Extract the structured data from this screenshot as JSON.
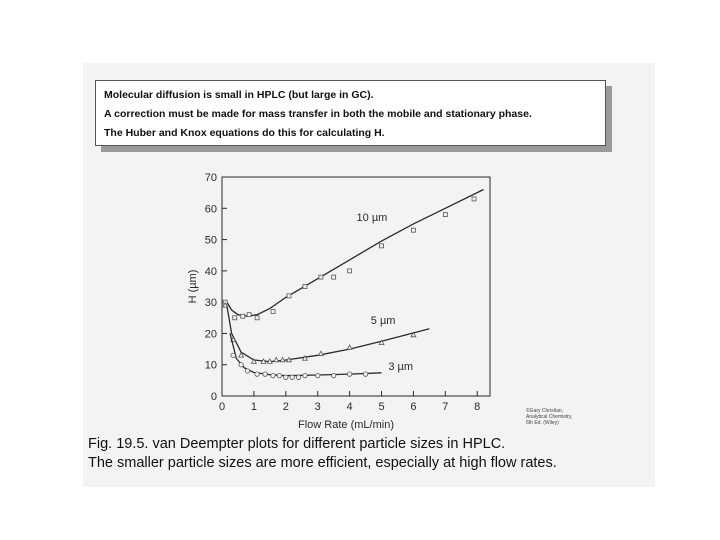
{
  "note": {
    "lines": [
      "Molecular diffusion is small in HPLC (but large in GC).",
      "A correction must be made for mass transfer in both the mobile and stationary phase.",
      "The Huber and Knox equations do this for calculating H."
    ]
  },
  "caption": {
    "line1": "Fig. 19.5. van Deempter plots for different particle sizes in HPLC.",
    "line2": "The smaller particle sizes are more efficient, especially at high flow rates."
  },
  "credit": {
    "line1": "©Gary Christian,",
    "line2": "Analytical Chemistry,",
    "line3": "6th Ed. (Wiley)"
  },
  "chart_data": {
    "type": "line",
    "title": "",
    "xlabel": "Flow Rate (mL/min)",
    "ylabel": "H (µm)",
    "xlim": [
      0,
      8.4
    ],
    "ylim": [
      0,
      70
    ],
    "xticks": [
      0,
      1,
      2,
      3,
      4,
      5,
      6,
      7,
      8
    ],
    "yticks": [
      0,
      10,
      20,
      30,
      40,
      50,
      60,
      70
    ],
    "grid": false,
    "legend": "none",
    "series": [
      {
        "name": "10 µm",
        "marker": "square",
        "points": [
          [
            0.1,
            30
          ],
          [
            0.4,
            25
          ],
          [
            0.65,
            25.5
          ],
          [
            0.85,
            26
          ],
          [
            1.1,
            25
          ],
          [
            1.6,
            27
          ],
          [
            2.1,
            32
          ],
          [
            2.6,
            35
          ],
          [
            3.1,
            38
          ],
          [
            3.5,
            38
          ],
          [
            4.0,
            40
          ],
          [
            5.0,
            48
          ],
          [
            6.0,
            53
          ],
          [
            7.0,
            58
          ],
          [
            7.9,
            63
          ]
        ],
        "curve": [
          [
            0.15,
            30
          ],
          [
            0.3,
            27.5
          ],
          [
            0.5,
            26
          ],
          [
            0.8,
            25.5
          ],
          [
            1.1,
            26
          ],
          [
            1.5,
            28
          ],
          [
            2.0,
            31.5
          ],
          [
            3.0,
            37.5
          ],
          [
            4.0,
            43.5
          ],
          [
            5.0,
            49.5
          ],
          [
            6.0,
            55
          ],
          [
            7.0,
            60
          ],
          [
            8.2,
            66
          ]
        ]
      },
      {
        "name": "5 µm",
        "marker": "triangle",
        "points": [
          [
            0.1,
            29
          ],
          [
            0.35,
            18
          ],
          [
            0.6,
            13
          ],
          [
            1.0,
            11
          ],
          [
            1.3,
            11
          ],
          [
            1.5,
            11
          ],
          [
            1.7,
            11.5
          ],
          [
            1.9,
            11.5
          ],
          [
            2.1,
            11.5
          ],
          [
            2.6,
            12
          ],
          [
            3.1,
            13.5
          ],
          [
            4.0,
            15.5
          ],
          [
            5.0,
            17
          ],
          [
            6.0,
            19.5
          ]
        ],
        "curve": [
          [
            0.15,
            29
          ],
          [
            0.3,
            20
          ],
          [
            0.6,
            14
          ],
          [
            1.0,
            11.5
          ],
          [
            1.5,
            11
          ],
          [
            2.0,
            11.5
          ],
          [
            3.0,
            13
          ],
          [
            4.0,
            15
          ],
          [
            5.0,
            17.5
          ],
          [
            6.5,
            21.5
          ]
        ]
      },
      {
        "name": "3 µm",
        "marker": "circle",
        "points": [
          [
            0.35,
            13
          ],
          [
            0.6,
            10
          ],
          [
            0.8,
            8
          ],
          [
            1.1,
            7
          ],
          [
            1.35,
            7
          ],
          [
            1.6,
            6.5
          ],
          [
            1.8,
            6.5
          ],
          [
            2.0,
            6
          ],
          [
            2.2,
            6
          ],
          [
            2.4,
            6
          ],
          [
            2.6,
            6.5
          ],
          [
            3.0,
            6.5
          ],
          [
            3.5,
            6.5
          ],
          [
            4.0,
            7
          ],
          [
            4.5,
            7
          ]
        ],
        "curve": [
          [
            0.25,
            20
          ],
          [
            0.45,
            12
          ],
          [
            0.7,
            9
          ],
          [
            1.0,
            7.5
          ],
          [
            1.5,
            6.8
          ],
          [
            2.0,
            6.5
          ],
          [
            3.0,
            6.7
          ],
          [
            4.0,
            7
          ],
          [
            5.0,
            7.4
          ]
        ]
      }
    ],
    "annotations": [
      {
        "text": "10 µm",
        "x": 4.7,
        "y": 56
      },
      {
        "text": "5 µm",
        "x": 5.05,
        "y": 23
      },
      {
        "text": "3 µm",
        "x": 5.6,
        "y": 8.3
      }
    ]
  }
}
